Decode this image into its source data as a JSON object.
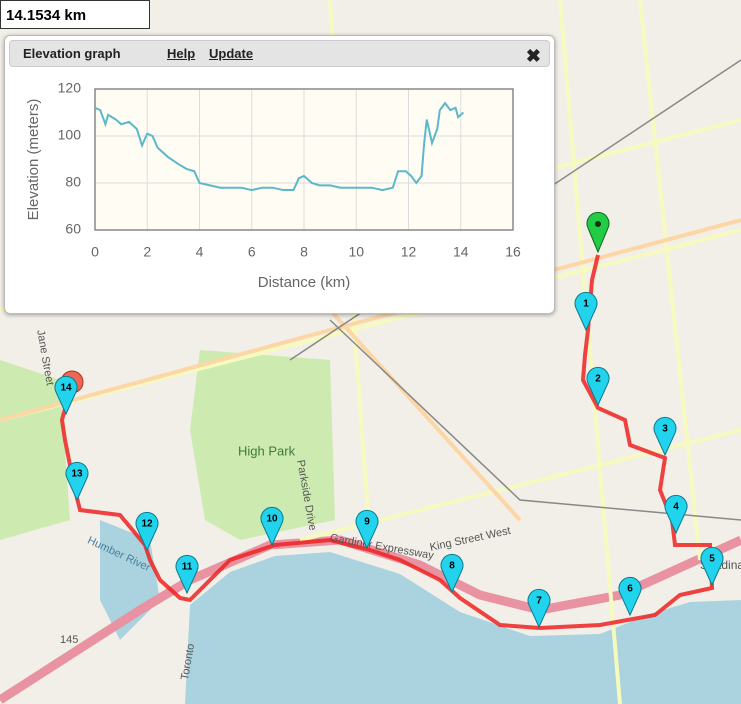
{
  "distance": "14.1534 km",
  "panel": {
    "title": "Elevation graph",
    "help": "Help",
    "update": "Update"
  },
  "chart_data": {
    "type": "line",
    "x_label": "Distance (km)",
    "y_label": "Elevation (meters)",
    "x": [
      0,
      0.2,
      0.4,
      0.5,
      0.8,
      1.0,
      1.3,
      1.6,
      1.8,
      2.0,
      2.2,
      2.4,
      2.8,
      3.2,
      3.5,
      3.8,
      4.0,
      4.4,
      4.8,
      5.2,
      5.6,
      6.0,
      6.4,
      6.8,
      7.2,
      7.6,
      7.8,
      8.0,
      8.3,
      8.6,
      9.0,
      9.4,
      9.8,
      10.2,
      10.6,
      11.0,
      11.4,
      11.6,
      11.9,
      12.1,
      12.3,
      12.5,
      12.6,
      12.7,
      12.9,
      13.1,
      13.2,
      13.4,
      13.6,
      13.8,
      13.9,
      14.1
    ],
    "series": [
      {
        "name": "Elevation",
        "color": "#5bb8c9",
        "values": [
          112,
          111,
          105,
          109,
          107,
          105,
          106,
          103,
          96,
          101,
          100,
          95,
          91,
          88,
          86,
          85,
          80,
          79,
          78,
          78,
          78,
          77,
          78,
          78,
          77,
          77,
          82,
          83,
          80,
          79,
          79,
          78,
          78,
          78,
          78,
          77,
          78,
          85,
          85,
          83,
          80,
          83,
          97,
          107,
          97,
          103,
          111,
          114,
          111,
          112,
          108,
          110
        ]
      }
    ],
    "xlim": [
      0,
      16
    ],
    "xticks": [
      0,
      2,
      4,
      6,
      8,
      10,
      12,
      14,
      16
    ],
    "ylim": [
      60,
      120
    ],
    "yticks": [
      60,
      80,
      100,
      120
    ],
    "grid": true
  },
  "markers": [
    "1",
    "2",
    "3",
    "4",
    "5",
    "6",
    "7",
    "8",
    "9",
    "10",
    "11",
    "12",
    "13",
    "14"
  ],
  "map_labels": [
    "High Park",
    "Parkside Drive",
    "Gardiner Expressway",
    "King Street West",
    "Jane Street",
    "Humber River",
    "Spadina",
    "145",
    "Toronto"
  ]
}
